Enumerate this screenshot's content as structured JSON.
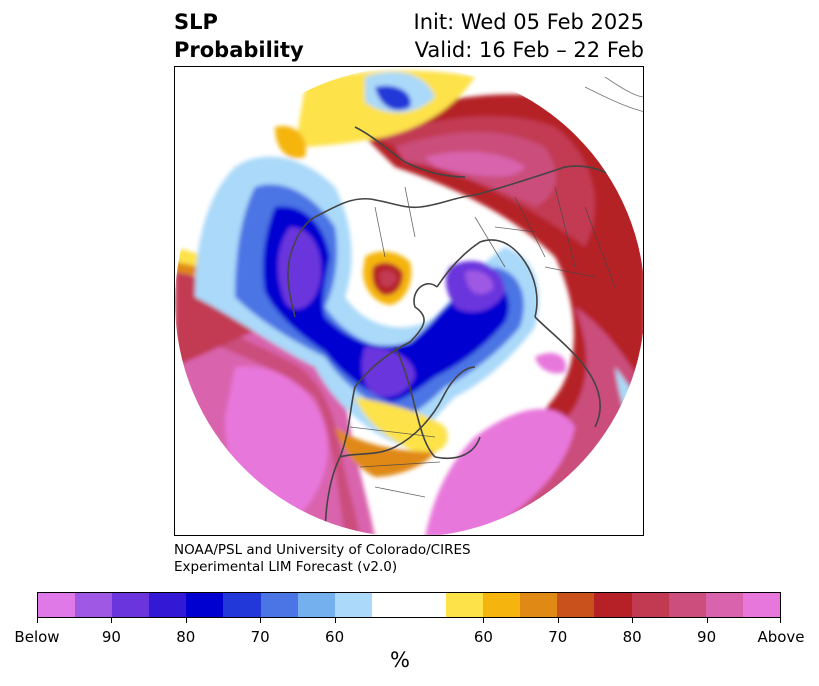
{
  "title": {
    "left_line1": "SLP",
    "left_line2": "Probability",
    "right_line1": "Init: Wed 05 Feb 2025",
    "right_line2": "Valid: 16 Feb – 22 Feb"
  },
  "credit": {
    "line1": "NOAA/PSL and University of Colorado/CIRES",
    "line2": "Experimental LIM Forecast (v2.0)"
  },
  "colorbar": {
    "unit": "%",
    "colors": [
      "#df79e8",
      "#9f58e3",
      "#6b35dd",
      "#3318d5",
      "#0000d0",
      "#2338d8",
      "#4b74e4",
      "#74afee",
      "#aad9f9",
      "#ffffff",
      "#ffffff",
      "#fde24a",
      "#f5b50e",
      "#e08914",
      "#c9511c",
      "#b52127",
      "#c23a52",
      "#cb4e7c",
      "#d963ad",
      "#e877db"
    ],
    "ticks": [
      "Below",
      "90",
      "80",
      "70",
      "60",
      "60",
      "70",
      "80",
      "90",
      "Above"
    ]
  },
  "map": {
    "region": "Northern Hemisphere polar stereographic",
    "colors": {
      "below_90": "#9f58e3",
      "below_80": "#3318d5",
      "below_70": "#2338d8",
      "below_60": "#74afee",
      "below_50": "#aad9f9",
      "neutral": "#ffffff",
      "above_50": "#fde24a",
      "above_60": "#f5b50e",
      "above_70": "#e08914",
      "above_80": "#b52127",
      "above_90": "#cb4e7c",
      "above_max": "#e877db",
      "coastline": "#444444"
    }
  }
}
